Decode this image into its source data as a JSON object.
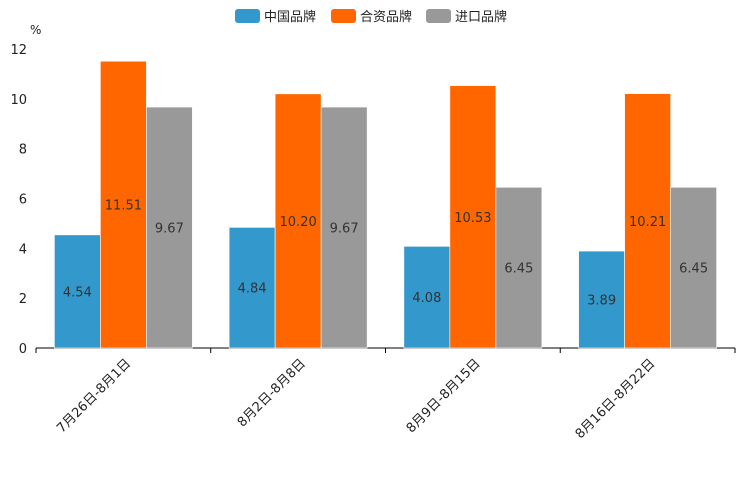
{
  "chart_data": {
    "type": "bar",
    "y_unit": "%",
    "categories": [
      "7月26日-8月1日",
      "8月2日-8月8日",
      "8月9日-8月15日",
      "8月16日-8月22日"
    ],
    "series": [
      {
        "name": "中国品牌",
        "color": "#3399cc",
        "values": [
          4.54,
          4.84,
          4.08,
          3.89
        ],
        "labels": [
          "4.54",
          "4.84",
          "4.08",
          "3.89"
        ]
      },
      {
        "name": "合资品牌",
        "color": "#ff6600",
        "values": [
          11.51,
          10.2,
          10.53,
          10.21
        ],
        "labels": [
          "11.51",
          "10.20",
          "10.53",
          "10.21"
        ]
      },
      {
        "name": "进口品牌",
        "color": "#999999",
        "values": [
          9.67,
          9.67,
          6.45,
          6.45
        ],
        "labels": [
          "9.67",
          "9.67",
          "6.45",
          "6.45"
        ]
      }
    ],
    "ylim": [
      0,
      12
    ],
    "yticks": [
      "0",
      "2",
      "4",
      "6",
      "8",
      "10",
      "12"
    ],
    "legend_position": "top-center",
    "grid": false
  }
}
